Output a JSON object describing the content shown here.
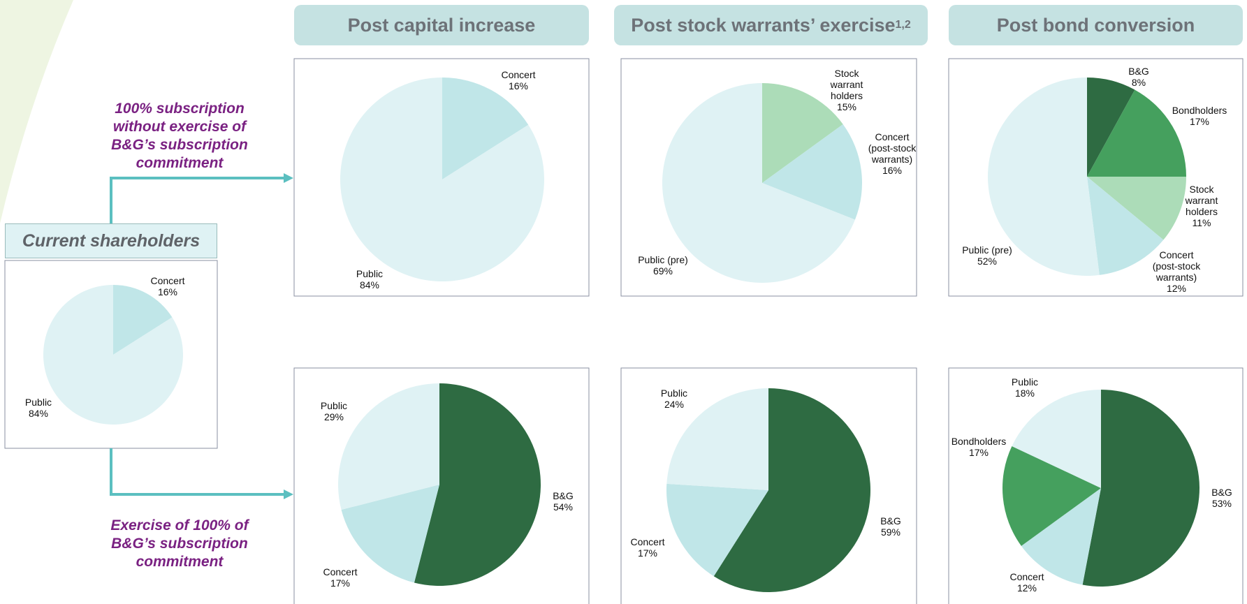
{
  "headers": [
    "Post capital increase",
    "Post stock warrants’ exercise",
    "Post bond conversion"
  ],
  "header_note": "1,2",
  "annotations": [
    "100% subscription\nwithout exercise of\nB&G’s subscription\ncommitment",
    "Exercise of 100%  of\nB&G’s subscription\ncommitment"
  ],
  "chart_data": [
    {
      "type": "pie",
      "title": "Current shareholders",
      "categories": [
        "Concert",
        "Public"
      ],
      "values": [
        16,
        84
      ],
      "value_labels": [
        "16%",
        "84%"
      ],
      "colors": [
        "#c0e6e8",
        "#dff2f4"
      ]
    },
    {
      "type": "pie",
      "categories": [
        "Concert",
        "Public"
      ],
      "values": [
        16,
        84
      ],
      "value_labels": [
        "16%",
        "84%"
      ],
      "colors": [
        "#c0e6e8",
        "#dff2f4"
      ]
    },
    {
      "type": "pie",
      "categories": [
        "Stock\nwarrant\nholders",
        "Concert\n(post-stock\nwarrants)",
        "Public (pre)"
      ],
      "values": [
        15,
        16,
        69
      ],
      "value_labels": [
        "15%",
        "16%",
        "69%"
      ],
      "colors": [
        "#acdcb8",
        "#c0e6e8",
        "#dff2f4"
      ]
    },
    {
      "type": "pie",
      "categories": [
        "B&G",
        "Bondholders",
        "Stock\nwarrant\nholders",
        "Concert\n(post-stock\nwarrants)",
        "Public (pre)"
      ],
      "values": [
        8,
        17,
        11,
        12,
        52
      ],
      "value_labels": [
        "8%",
        "17%",
        "11%",
        "12%",
        "52%"
      ],
      "colors": [
        "#2e6b42",
        "#45a05e",
        "#acdcb8",
        "#c0e6e8",
        "#dff2f4"
      ]
    },
    {
      "type": "pie",
      "categories": [
        "B&G",
        "Concert",
        "Public"
      ],
      "values": [
        54,
        17,
        29
      ],
      "value_labels": [
        "54%",
        "17%",
        "29%"
      ],
      "colors": [
        "#2e6b42",
        "#c0e6e8",
        "#dff2f4"
      ]
    },
    {
      "type": "pie",
      "categories": [
        "B&G",
        "Concert",
        "Public"
      ],
      "values": [
        59,
        17,
        24
      ],
      "value_labels": [
        "59%",
        "17%",
        "24%"
      ],
      "colors": [
        "#2e6b42",
        "#c0e6e8",
        "#dff2f4"
      ]
    },
    {
      "type": "pie",
      "categories": [
        "B&G",
        "Concert",
        "Bondholders",
        "Public"
      ],
      "values": [
        53,
        12,
        17,
        18
      ],
      "value_labels": [
        "53%",
        "12%",
        "17%",
        "18%"
      ],
      "colors": [
        "#2e6b42",
        "#c0e6e8",
        "#45a05e",
        "#dff2f4"
      ]
    }
  ]
}
